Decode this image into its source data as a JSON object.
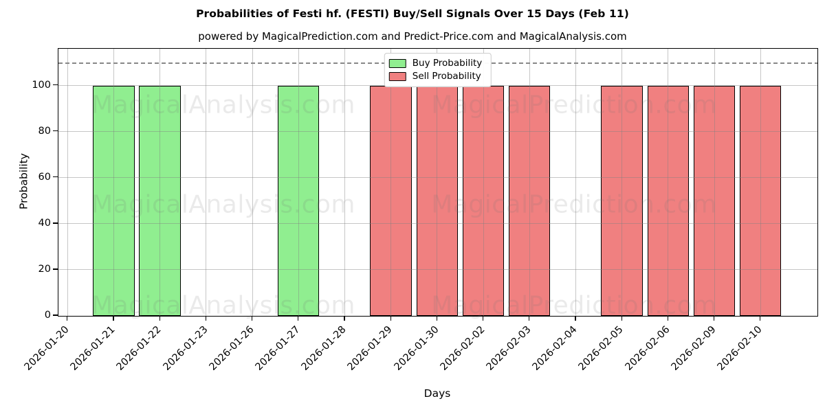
{
  "figure": {
    "title": "Probabilities of Festi hf. (FESTI) Buy/Sell Signals Over 15 Days (Feb 11)",
    "subtitle": "powered by MagicalPrediction.com and Predict-Price.com and MagicalAnalysis.com"
  },
  "axes": {
    "xlabel": "Days",
    "ylabel": "Probability"
  },
  "legend": {
    "items": [
      {
        "label": "Buy Probability",
        "color": "#90ee90"
      },
      {
        "label": "Sell Probability",
        "color": "#f08080"
      }
    ]
  },
  "watermarks": {
    "left": "MagicalAnalysis.com",
    "right": "MagicalPrediction.com"
  },
  "colors": {
    "buy": "#90ee90",
    "sell": "#f08080",
    "bar_edge": "#000000",
    "grid": "#b0b0b0",
    "dashed_line": "#878787",
    "legend_border": "#cccccc"
  },
  "chart_data": {
    "type": "bar",
    "title": "Probabilities of Festi hf. (FESTI) Buy/Sell Signals Over 15 Days (Feb 11)",
    "subtitle": "powered by MagicalPrediction.com and Predict-Price.com and MagicalAnalysis.com",
    "categories": [
      "2026-01-20",
      "2026-01-21",
      "2026-01-22",
      "2026-01-23",
      "2026-01-26",
      "2026-01-27",
      "2026-01-28",
      "2026-01-29",
      "2026-01-30",
      "2026-02-02",
      "2026-02-03",
      "2026-02-04",
      "2026-02-05",
      "2026-02-06",
      "2026-02-09",
      "2026-02-10"
    ],
    "series": [
      {
        "name": "Buy Probability",
        "color": "#90ee90",
        "values": [
          0,
          100,
          100,
          0,
          0,
          100,
          0,
          0,
          0,
          0,
          0,
          0,
          0,
          0,
          0,
          0
        ]
      },
      {
        "name": "Sell Probability",
        "color": "#f08080",
        "values": [
          0,
          0,
          0,
          0,
          0,
          0,
          0,
          100,
          100,
          100,
          100,
          0,
          100,
          100,
          100,
          100
        ]
      }
    ],
    "xlabel": "Days",
    "ylabel": "Probability",
    "ylim": [
      0,
      116
    ],
    "yticks": [
      0,
      20,
      40,
      60,
      80,
      100
    ],
    "hline": {
      "y": 110,
      "style": "dashed",
      "color": "#878787"
    },
    "grid": true,
    "legend_position": "upper center"
  }
}
